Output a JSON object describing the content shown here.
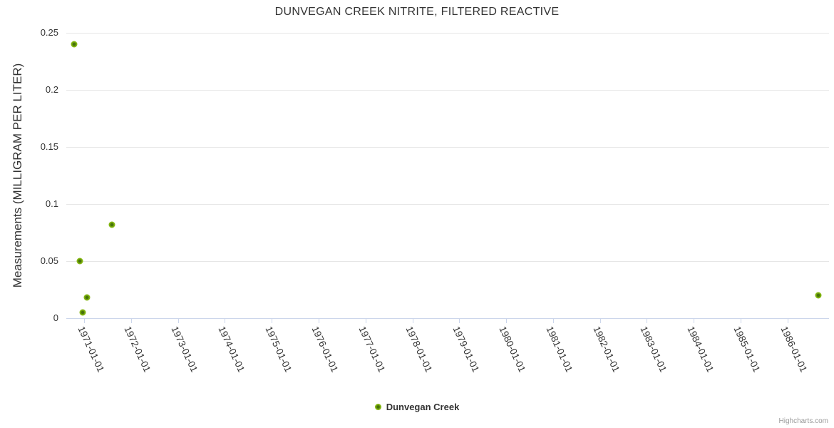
{
  "header": {
    "title": "DUNVEGAN CREEK NITRITE, FILTERED REACTIVE"
  },
  "credit_label": "Highcharts.com",
  "colors": {
    "series": "#7fb30d",
    "series_center": "#46720a",
    "gridline": "#e6e6e6",
    "axis_line": "#ccd6eb",
    "text": "#333333",
    "credit": "#999999"
  },
  "chart_data": {
    "type": "scatter",
    "title": "DUNVEGAN CREEK NITRITE, FILTERED REACTIVE",
    "xlabel": "",
    "ylabel": "Measurements (MILLIGRAM PER LITER)",
    "grid": true,
    "legend_position": "bottom-center",
    "x_axis": {
      "type": "datetime",
      "min": "1970-08-12",
      "max": "1986-11-18",
      "ticks": [
        "1971-01-01",
        "1972-01-01",
        "1973-01-01",
        "1974-01-01",
        "1975-01-01",
        "1976-01-01",
        "1977-01-01",
        "1978-01-01",
        "1979-01-01",
        "1980-01-01",
        "1981-01-01",
        "1982-01-01",
        "1983-01-01",
        "1984-01-01",
        "1985-01-01",
        "1986-01-01"
      ]
    },
    "y_axis": {
      "min": 0,
      "max": 0.25,
      "ticks": [
        0,
        0.05,
        0.1,
        0.15,
        0.2,
        0.25
      ],
      "tick_labels": [
        "0",
        "0.05",
        "0.1",
        "0.15",
        "0.2",
        "0.25"
      ]
    },
    "series": [
      {
        "name": "Dunvegan Creek",
        "color": "#7fb30d",
        "points": [
          {
            "date": "1970-10-10",
            "value": 0.24
          },
          {
            "date": "1970-11-23",
            "value": 0.05
          },
          {
            "date": "1970-12-20",
            "value": 0.005
          },
          {
            "date": "1971-01-22",
            "value": 0.018
          },
          {
            "date": "1971-08-05",
            "value": 0.082
          },
          {
            "date": "1986-08-28",
            "value": 0.02
          }
        ]
      }
    ]
  }
}
